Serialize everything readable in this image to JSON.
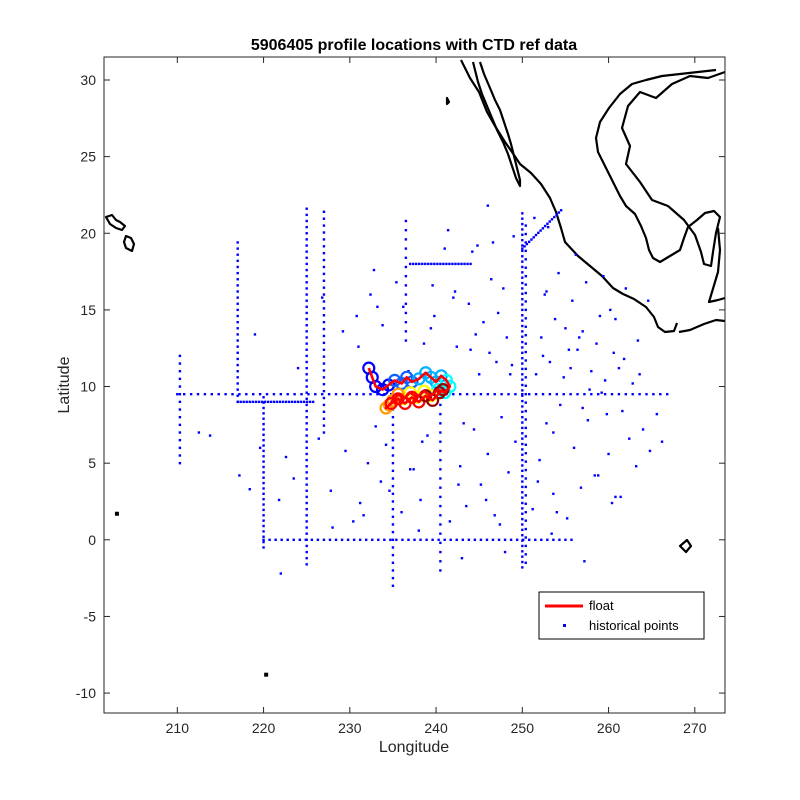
{
  "chart_data": {
    "type": "scatter",
    "title": "5906405 profile locations with CTD ref data",
    "xlabel": "Longitude",
    "ylabel": "Latitude",
    "xlim": [
      201.5,
      273.5
    ],
    "ylim": [
      -11.3,
      31.5
    ],
    "xticks": [
      210,
      220,
      230,
      240,
      250,
      260,
      270
    ],
    "yticks": [
      -10,
      -5,
      0,
      5,
      10,
      15,
      20,
      25,
      30
    ],
    "grid": false,
    "legend": {
      "placement": "bottom-right",
      "entries": [
        "float",
        "historical points"
      ]
    },
    "colors": {
      "float": "#ff0000",
      "historical": "#0000ff",
      "coastline": "#000000",
      "axes": "#262626"
    },
    "series": [
      {
        "name": "float",
        "style": "line",
        "x": [
          232.2,
          232.6,
          233.0,
          233.8,
          234.5,
          235.2,
          236.0,
          236.6,
          237.2,
          238.0,
          238.8,
          239.4,
          240.0,
          240.6,
          241.2,
          241.6,
          241.0,
          240.2,
          239.4,
          238.6,
          237.8,
          237.0,
          236.2,
          235.6,
          235.0,
          234.6,
          234.2,
          234.8,
          235.6,
          236.4,
          237.2,
          238.0,
          238.8,
          239.6,
          240.4,
          240.8
        ],
        "y": [
          11.2,
          10.6,
          10.0,
          9.8,
          10.1,
          10.4,
          10.2,
          10.6,
          10.3,
          10.5,
          10.9,
          10.6,
          10.3,
          10.7,
          10.4,
          10.0,
          9.6,
          9.8,
          9.4,
          9.7,
          9.3,
          9.6,
          9.2,
          9.5,
          9.1,
          8.8,
          8.6,
          8.9,
          9.2,
          8.9,
          9.3,
          9.0,
          9.4,
          9.1,
          9.6,
          9.8
        ]
      },
      {
        "name": "historical points",
        "style": "points",
        "groups": [
          {
            "kind": "hline",
            "y": 9.5,
            "x": [
              210,
              267
            ],
            "step": 0.8
          },
          {
            "kind": "hline",
            "y": 9.0,
            "x": [
              217,
              226
            ],
            "step": 0.35
          },
          {
            "kind": "hline",
            "y": 0.0,
            "x": [
              220,
              256
            ],
            "step": 0.7
          },
          {
            "kind": "hline",
            "y": 18.0,
            "x": [
              237,
              244
            ],
            "step": 0.35
          },
          {
            "kind": "vline",
            "x": 250,
            "y": [
              -1.8,
              21.5
            ],
            "step": 0.35
          },
          {
            "kind": "vline",
            "x": 250.4,
            "y": [
              -1.5,
              21
            ],
            "step": 0.55
          },
          {
            "kind": "vline",
            "x": 225,
            "y": [
              -1.6,
              21.7
            ],
            "step": 0.4
          },
          {
            "kind": "vline",
            "x": 227,
            "y": [
              7,
              21.7
            ],
            "step": 0.45
          },
          {
            "kind": "vline",
            "x": 220,
            "y": [
              -0.5,
              9.5
            ],
            "step": 0.35
          },
          {
            "kind": "vline",
            "x": 217,
            "y": [
              9,
              19.7
            ],
            "step": 0.4
          },
          {
            "kind": "vline",
            "x": 235,
            "y": [
              -3,
              9
            ],
            "step": 0.5
          },
          {
            "kind": "vline",
            "x": 240.5,
            "y": [
              -2,
              9
            ],
            "step": 0.6
          },
          {
            "kind": "vline",
            "x": 210.3,
            "y": [
              5,
              12.2
            ],
            "step": 0.5
          },
          {
            "kind": "vline",
            "x": 236.5,
            "y": [
              13,
              21
            ],
            "step": 0.6
          },
          {
            "kind": "diag",
            "from": [
              250,
              19
            ],
            "to": [
              254.5,
              21.5
            ],
            "step": 0.3
          },
          {
            "kind": "scatter",
            "x": [
              212.5,
              213.8,
              217.2,
              218.4,
              219.6,
              221.8,
              222.6,
              223.5,
              226.4,
              227.8,
              229.5,
              231.2,
              232.1,
              233.0,
              233.6,
              234.2,
              236.0,
              237.4,
              238.2,
              239.0,
              241.6,
              242.8,
              243.5,
              244.4,
              245.2,
              246.0,
              246.8,
              247.6,
              248.4,
              249.2,
              251.2,
              252.0,
              252.8,
              253.6,
              254.4,
              255.2,
              256.0,
              256.8,
              257.6,
              258.4,
              259.2,
              260.0,
              260.8,
              261.6,
              262.4,
              263.2,
              264.0,
              264.8,
              265.6,
              266.2,
              244.0,
              245.5,
              247.0,
              248.2,
              252.4,
              253.8,
              255.6,
              257.0,
              258.6,
              260.2,
              261.8,
              263.4,
              242.2,
              243.8,
              246.4,
              247.8,
              252.6,
              254.2,
              255.8,
              257.4,
              259.0,
              238.6,
              239.8,
              242.0,
              244.6,
              246.2,
              248.8,
              251.6,
              253.2,
              254.8,
              256.4,
              258.0,
              259.6,
              261.2,
              262.8,
              231.0,
              233.8,
              236.8,
              239.4,
              242.4,
              245.0,
              247.2,
              252.2,
              255.0,
              257.8,
              260.6,
              263.6,
              232.4,
              236.2,
              241.0,
              244.2,
              246.6,
              249.0,
              253.0,
              256.2,
              259.4,
              262.0,
              264.6,
              230.4,
              234.6,
              238.0,
              243.0,
              245.8,
              248.0,
              251.8,
              254.0,
              257.2,
              260.4,
              222.0,
              228.0,
              231.6,
              237.0,
              242.6,
              247.4,
              253.4,
              258.8,
              261.4,
              224.0,
              229.2,
              233.2,
              239.6,
              244.8,
              251.4,
              256.6,
              260.8,
              219.0,
              230.8,
              235.4,
              241.4,
              246.0,
              252.8,
              255.4,
              259.8,
              226.8,
              232.8,
              238.4,
              243.2,
              248.6,
              253.6,
              257.0
            ],
            "y": [
              7.0,
              6.8,
              4.2,
              3.3,
              6.0,
              2.6,
              5.4,
              4.0,
              6.6,
              3.2,
              5.8,
              2.4,
              5.0,
              7.4,
              3.8,
              6.2,
              1.8,
              4.6,
              2.6,
              6.8,
              1.2,
              4.8,
              2.2,
              7.2,
              3.6,
              5.6,
              1.6,
              8.0,
              4.4,
              6.4,
              2.0,
              5.2,
              7.6,
              3.0,
              8.8,
              1.4,
              6.0,
              3.4,
              7.8,
              4.2,
              9.6,
              5.6,
              2.8,
              8.4,
              6.6,
              4.8,
              7.2,
              5.8,
              8.2,
              6.4,
              12.4,
              14.2,
              11.6,
              13.2,
              12.0,
              14.4,
              11.2,
              13.6,
              12.8,
              15.0,
              11.8,
              13.0,
              16.2,
              15.4,
              17.0,
              16.4,
              16.0,
              17.4,
              15.6,
              16.8,
              14.6,
              12.8,
              14.6,
              15.8,
              13.4,
              12.2,
              11.4,
              10.8,
              11.6,
              10.6,
              12.4,
              11.0,
              10.4,
              11.2,
              10.2,
              12.6,
              14.0,
              11.0,
              13.8,
              12.6,
              10.8,
              14.8,
              13.2,
              13.8,
              9.8,
              12.2,
              10.8,
              16.0,
              15.2,
              19.0,
              18.8,
              19.4,
              19.8,
              20.4,
              18.6,
              17.2,
              16.4,
              15.6,
              1.2,
              3.2,
              0.6,
              -1.2,
              2.6,
              -0.8,
              3.8,
              1.8,
              -1.4,
              2.4,
              -2.2,
              0.8,
              1.6,
              4.6,
              3.6,
              1.0,
              0.4,
              4.2,
              2.8,
              11.2,
              13.6,
              15.2,
              16.6,
              19.2,
              21.0,
              13.2,
              14.4,
              13.4,
              14.6,
              16.8,
              20.2,
              21.8,
              16.2,
              12.4,
              8.2,
              15.8,
              17.6,
              6.4,
              7.6,
              10.8,
              7.0,
              8.6
            ]
          }
        ]
      }
    ],
    "contour_colors": [
      "#0000ff",
      "#1060ff",
      "#00b0ff",
      "#00ffff",
      "#ffff00",
      "#ff9900",
      "#ff0000",
      "#990000"
    ],
    "isolated_marks": [
      {
        "x": 220.3,
        "y": -8.8,
        "color": "#000000"
      },
      {
        "x": 203.0,
        "y": 1.7,
        "color": "#000000"
      }
    ]
  }
}
